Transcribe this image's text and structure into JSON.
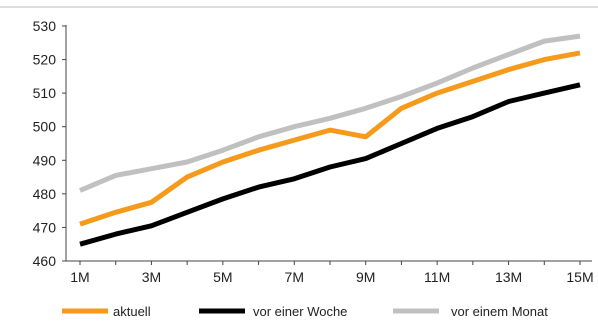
{
  "chart_data": {
    "type": "line",
    "categories": [
      "1M",
      "2M",
      "3M",
      "4M",
      "5M",
      "6M",
      "7M",
      "8M",
      "9M",
      "10M",
      "11M",
      "12M",
      "13M",
      "14M",
      "15M"
    ],
    "x_tick_labels": [
      "1M",
      "3M",
      "5M",
      "7M",
      "9M",
      "11M",
      "13M",
      "15M"
    ],
    "y_ticks": [
      460,
      470,
      480,
      490,
      500,
      510,
      520,
      530
    ],
    "ylim": [
      460,
      530
    ],
    "grid": false,
    "legend_position": "bottom",
    "series": [
      {
        "name": "vor einem Monat",
        "color": "#c0c0c0",
        "values": [
          481,
          485.5,
          487.5,
          489.5,
          493,
          497,
          500,
          502.5,
          505.5,
          509,
          513,
          517.5,
          521.5,
          525.5,
          527
        ]
      },
      {
        "name": "aktuell",
        "color": "#f59a1a",
        "values": [
          471,
          474.5,
          477.5,
          485,
          489.5,
          493,
          496,
          499,
          497,
          505.5,
          510,
          513.5,
          517,
          520,
          522
        ]
      },
      {
        "name": "vor einer Woche",
        "color": "#000000",
        "values": [
          465,
          468,
          470.5,
          474.5,
          478.5,
          482,
          484.5,
          488,
          490.5,
          495,
          499.5,
          503,
          507.5,
          510,
          512.5
        ]
      }
    ],
    "legend": [
      {
        "name": "aktuell",
        "color": "#f59a1a"
      },
      {
        "name": "vor einer Woche",
        "color": "#000000"
      },
      {
        "name": "vor einem Monat",
        "color": "#c0c0c0"
      }
    ]
  }
}
